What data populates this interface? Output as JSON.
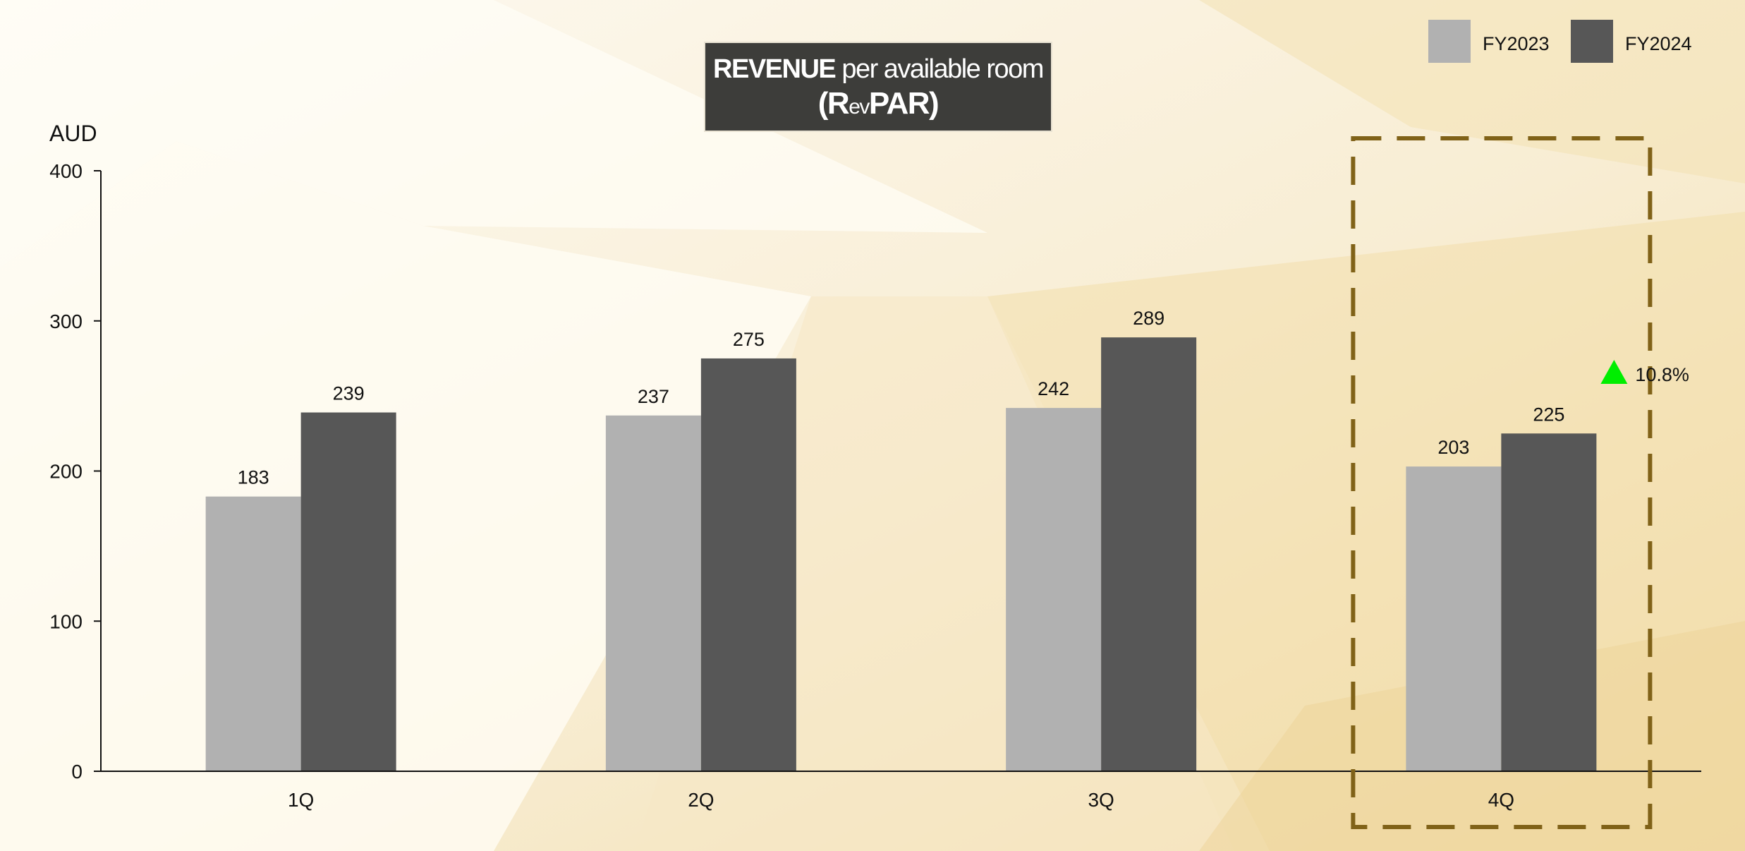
{
  "title": {
    "part1_bold": "REVENUE",
    "part1_rest": " per available room",
    "part2_open": "(R",
    "part2_small": "ev",
    "part2_close": "PAR)"
  },
  "chart_data": {
    "type": "bar",
    "ylabel": "AUD",
    "ylim": [
      0,
      400
    ],
    "yticks": [
      0,
      100,
      200,
      300,
      400
    ],
    "categories": [
      "1Q",
      "2Q",
      "3Q",
      "4Q"
    ],
    "series": [
      {
        "name": "FY2023",
        "values": [
          183,
          237,
          242,
          203
        ],
        "color": "#b1b1b1"
      },
      {
        "name": "FY2024",
        "values": [
          239,
          275,
          289,
          225
        ],
        "color": "#575757"
      }
    ],
    "legend_position": "top-right",
    "grid": false,
    "annotations": [
      {
        "category": "4Q",
        "text": "10.8%",
        "marker": "up-triangle",
        "color": "#00ee00"
      }
    ],
    "highlight": {
      "category": "4Q",
      "style": "dashed-box",
      "color": "#806218"
    }
  }
}
